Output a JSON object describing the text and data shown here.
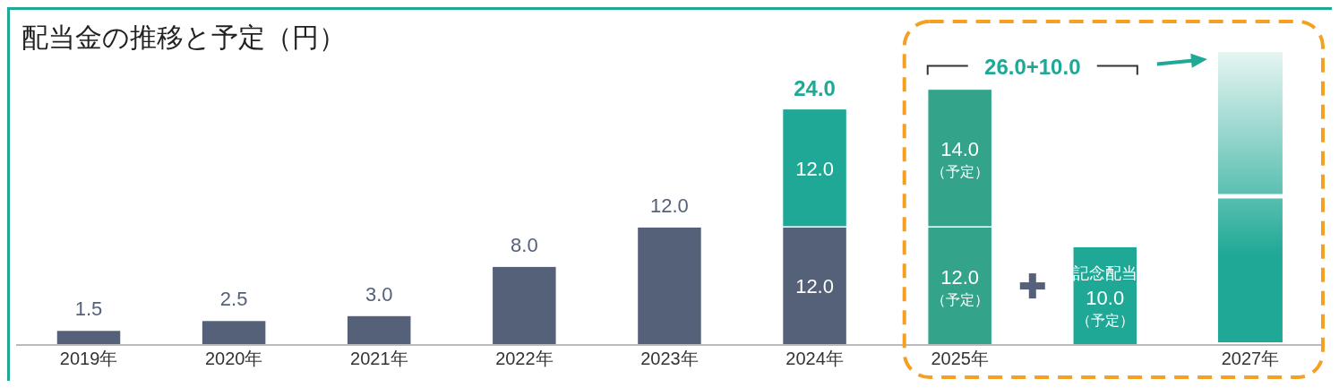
{
  "chart_data": {
    "type": "bar",
    "title": "配当金の推移と予定（円）",
    "categories": [
      "2019年",
      "2020年",
      "2021年",
      "2022年",
      "2023年",
      "2024年",
      "2025年",
      null,
      "2027年"
    ],
    "stacked": true,
    "series": [
      {
        "colors": [
          "#546179",
          "#546179",
          "#546179",
          "#546179",
          "#546179",
          "#546179",
          "#33a38a",
          null,
          null
        ],
        "values": [
          1.5,
          2.5,
          3,
          8,
          12,
          12,
          12,
          null,
          null
        ],
        "value_labels": [
          "1.5",
          "2.5",
          "3.0",
          "8.0",
          "12.0",
          "12.0",
          "12.0\n（予定）",
          null,
          null
        ]
      },
      {
        "colors": [
          null,
          null,
          null,
          null,
          null,
          "#1fa896",
          "#33a38a",
          null,
          null
        ],
        "values": [
          null,
          null,
          null,
          null,
          null,
          12,
          14,
          null,
          null
        ],
        "value_labels": [
          null,
          null,
          null,
          null,
          null,
          "12.0",
          "14.0\n（予定）",
          null,
          null
        ]
      },
      {
        "name": "記念配当",
        "color": "#1fa896",
        "values": [
          null,
          null,
          null,
          null,
          null,
          null,
          null,
          10,
          null
        ],
        "value_labels": [
          null,
          null,
          null,
          null,
          null,
          null,
          null,
          "10.0\n（予定）",
          null
        ]
      }
    ],
    "totals": [
      null,
      null,
      null,
      null,
      null,
      "24.0",
      null,
      null,
      null
    ],
    "annotations": [
      "26.0+10.0"
    ]
  }
}
